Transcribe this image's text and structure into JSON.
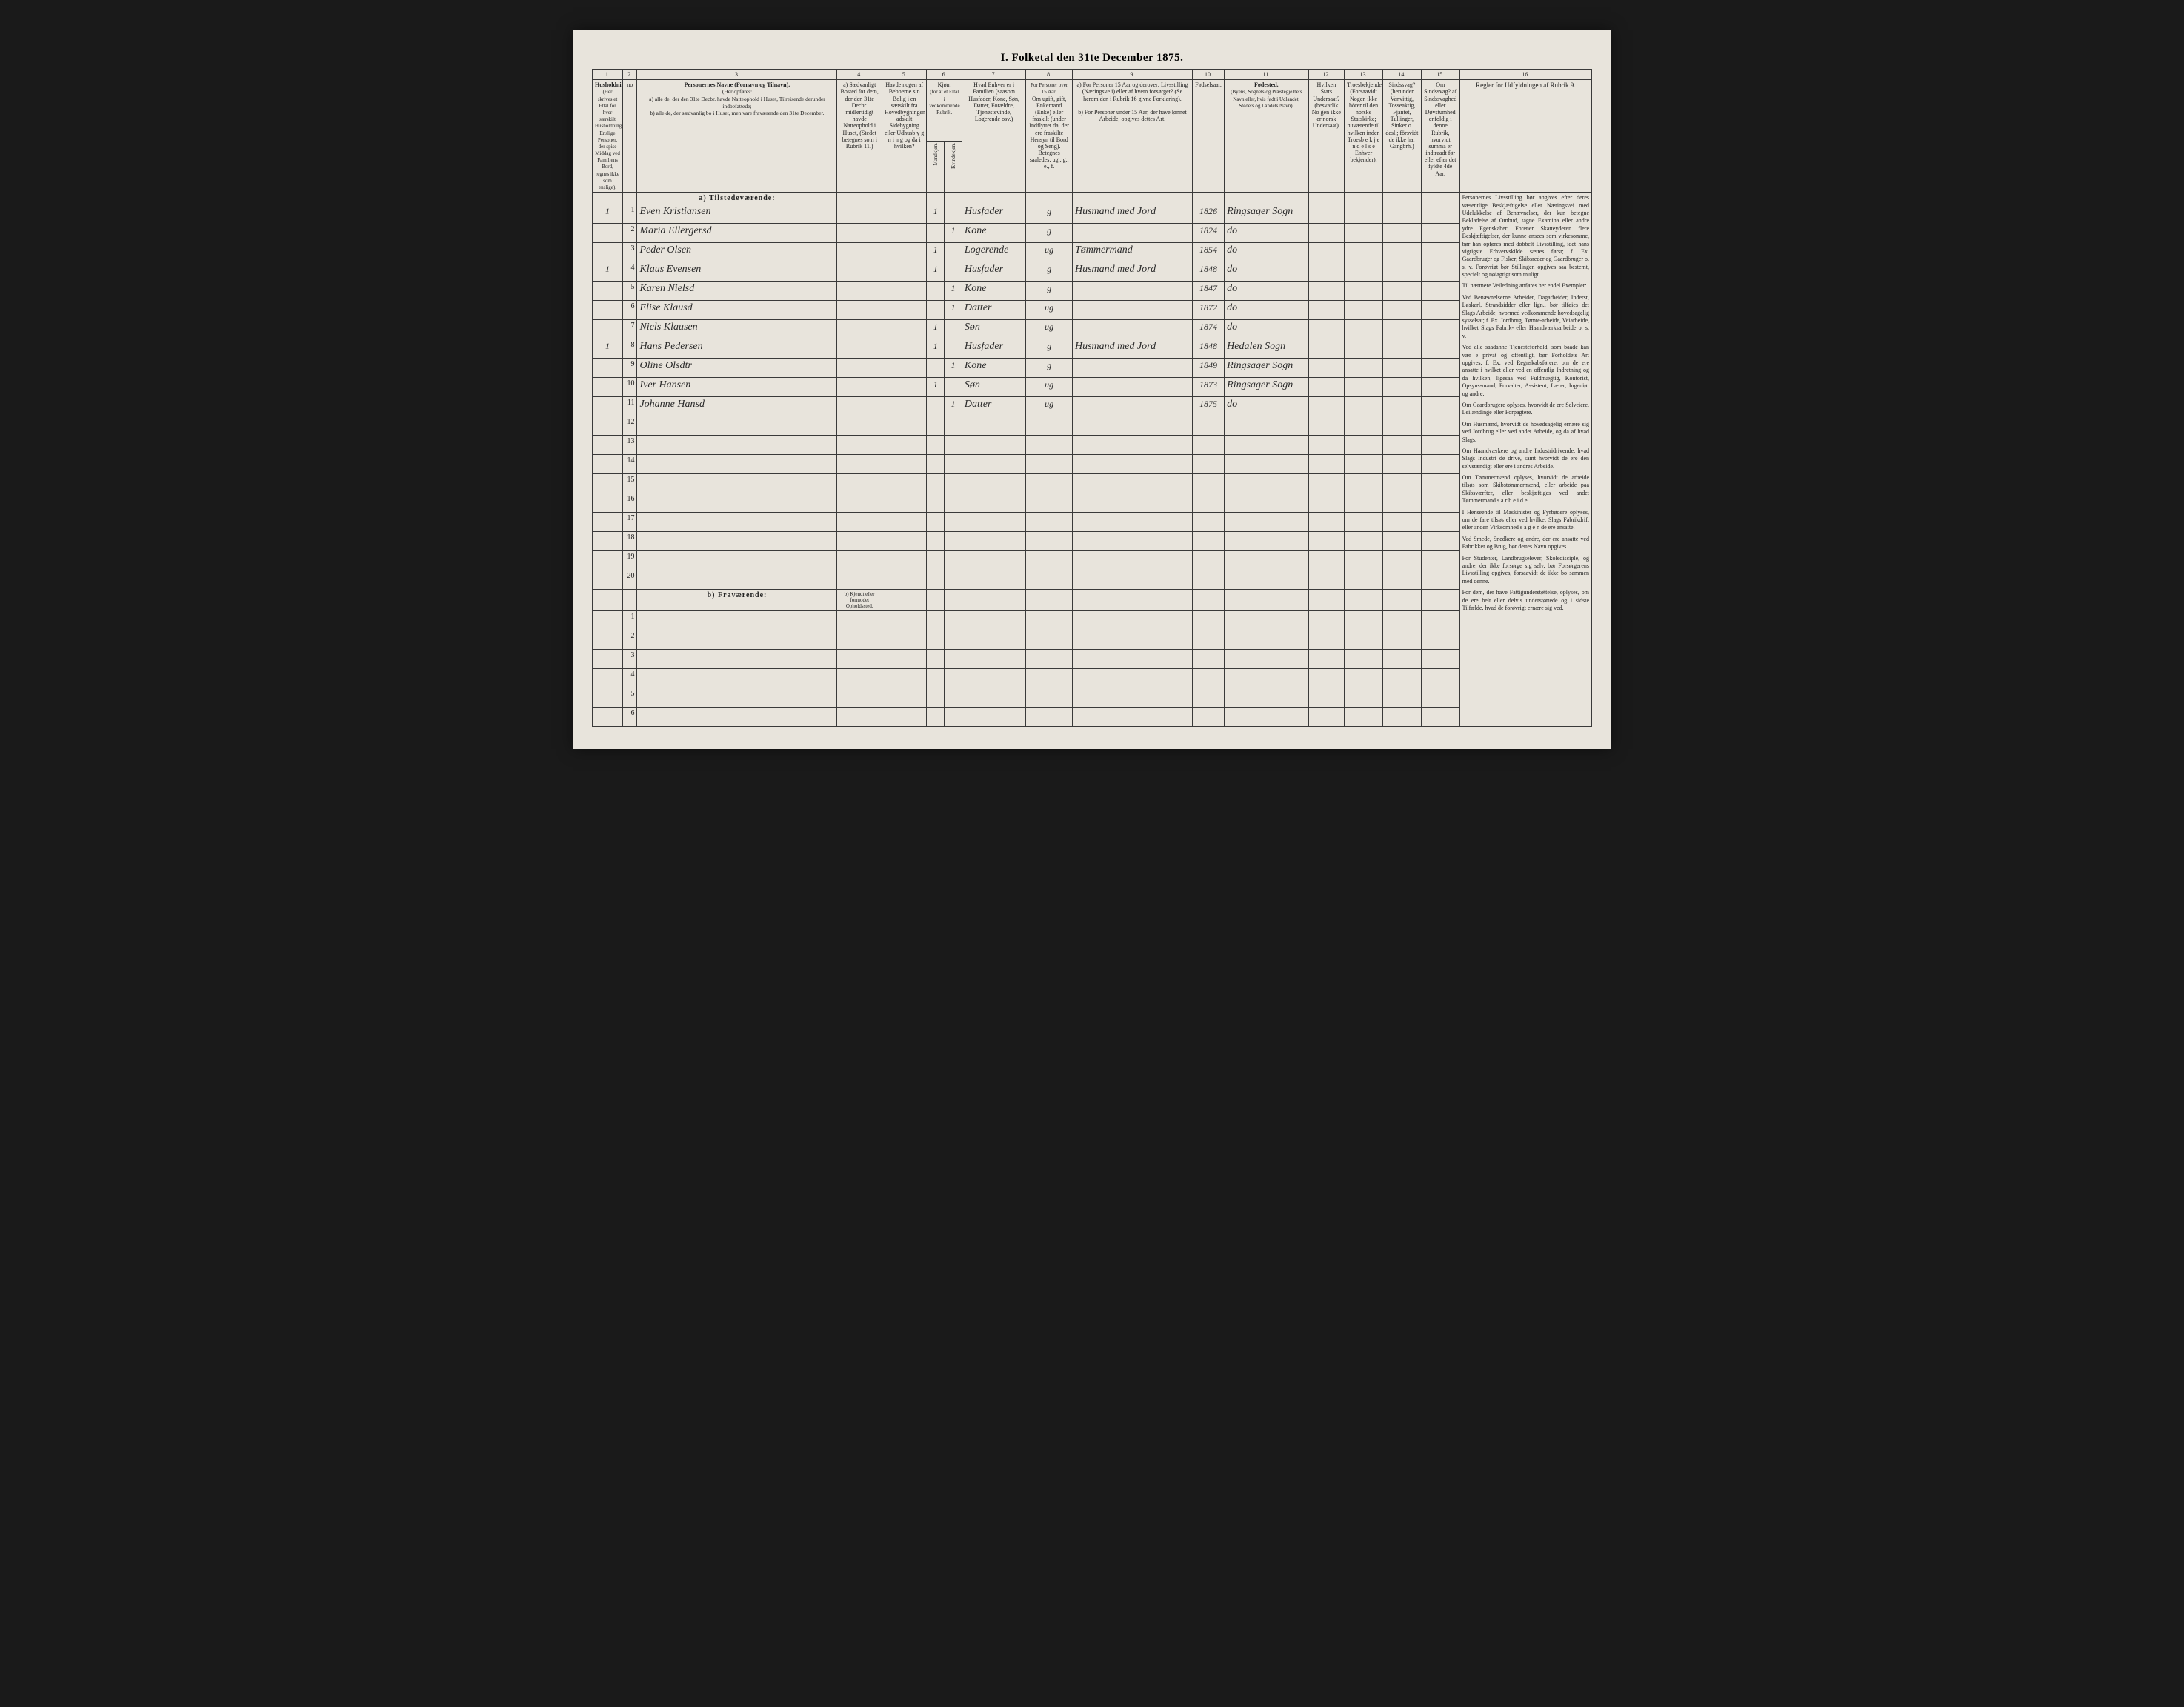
{
  "title": "I. Folketal den 31te December 1875.",
  "columns": {
    "nums": [
      "1.",
      "2.",
      "3.",
      "4.",
      "5.",
      "6.",
      "7.",
      "8.",
      "9.",
      "10.",
      "11.",
      "12.",
      "13.",
      "14.",
      "15.",
      "16."
    ],
    "h1": "Husholdninger.",
    "h1_sub": "(Her skrives et Ettal for hver særskilt Husholdning. Enslige Personer, der spise Middag ved Familiens Bord, regnes ikke som enslige).",
    "h2": "no",
    "h3_title": "Personernes Navne (Fornavn og Tilnavn).",
    "h3_sub": "(Her opføres:\na) alle de, der den 31te Decbr. havde Natteophold i Huset, Tilreisende derunder indbefattede;\nb) alle de, der sædvanlig bo i Huset, men vare fraværende den 31te December.",
    "h4": "a) Sædvanligt Bosted for dem, der den 31te Decbr. midlertidigt havde Natteophold i Huset, (Stedet betegnes som i Rubrik 11.)",
    "h5": "Havde nogen af Beboerne sin Bolig i en særskilt fra Hovedbygningen adskilt Sidebygning eller Udhusb y g n i n g og da i hvilken?",
    "h6_top": "Kjøn.",
    "h6_sub": "(for at et Ettal i vedkommende Rubrik.",
    "h6a": "Mandkjøn.",
    "h6b": "Kvindekjøn.",
    "h7": "Hvad Enhver er i Familien (saasom Husfader, Kone, Søn, Datter, Forældre, Tjenestevinde, Logerende osv.)",
    "h8_top": "For Personer over 15 Aar:",
    "h8": "Om ugift, gift, Enkemand (Enke) eller fraskilt (under Indflyttet da, der ere fraskilte Hensyn til Bord og Seng). Betegnes saaledes: ug., g., e., f.",
    "h9_top": "a) For Personer 15 Aar og derover: Livsstilling (Næringsve i) eller af hvem forsørget? (Se herom den i Rubrik 16 givne Forklaring).",
    "h9_bot": "b) For Personer under 15 Aar, der have lønnet Arbeide, opgives dettes Art.",
    "h10": "Fødselsaar.",
    "h11_title": "Fødested.",
    "h11_sub": "(Byens, Sognets og Præstegjeldets Navn eller, hvis født i Udlandet, Stedets og Landets Navn).",
    "h12": "Hvilken Stats Undersaat? (besvarlik No gen ikke er norsk Undersaat).",
    "h13": "Troesbekjendelse. (Forsaavidt Nogen ikke hörer til den norske Statskirke; nuværende til hvilken inden Troesb e k j e n d e l s e Enhver bekjender).",
    "h14": "Sindssvag? (herunder Vanvittig, Tosseaktig, Fjantet, Tullinger, Sinker o. desl.; försvidt de ikke har Gangbrh.)",
    "h15": "Om Sindssvag? af Sindssvaghed eller Døvstumhed enfoldig i denne Rubrik, hvorvidt summa er indtraadt før eller efter det fyldte 4de Aar.",
    "h16_title": "Regler for Udfyldningen af Rubrik 9."
  },
  "section_present": "a) Tilstedeværende:",
  "section_absent": "b) Fraværende:",
  "absent_h4": "b) Kjendt eller formodet Opholdssted.",
  "rows": [
    {
      "n": "1",
      "hh": "1",
      "name": "Even Kristiansen",
      "m": "1",
      "f": "",
      "rel": "Husfader",
      "civ": "g",
      "occ": "Husmand med Jord",
      "yr": "1826",
      "place": "Ringsager Sogn"
    },
    {
      "n": "2",
      "hh": "",
      "name": "Maria Ellergersd",
      "m": "",
      "f": "1",
      "rel": "Kone",
      "civ": "g",
      "occ": "",
      "yr": "1824",
      "place": "do"
    },
    {
      "n": "3",
      "hh": "",
      "name": "Peder Olsen",
      "m": "1",
      "f": "",
      "rel": "Logerende",
      "civ": "ug",
      "occ": "Tømmermand",
      "yr": "1854",
      "place": "do"
    },
    {
      "n": "4",
      "hh": "1",
      "name": "Klaus Evensen",
      "m": "1",
      "f": "",
      "rel": "Husfader",
      "civ": "g",
      "occ": "Husmand med Jord",
      "yr": "1848",
      "place": "do"
    },
    {
      "n": "5",
      "hh": "",
      "name": "Karen Nielsd",
      "m": "",
      "f": "1",
      "rel": "Kone",
      "civ": "g",
      "occ": "",
      "yr": "1847",
      "place": "do"
    },
    {
      "n": "6",
      "hh": "",
      "name": "Elise Klausd",
      "m": "",
      "f": "1",
      "rel": "Datter",
      "civ": "ug",
      "occ": "",
      "yr": "1872",
      "place": "do"
    },
    {
      "n": "7",
      "hh": "",
      "name": "Niels Klausen",
      "m": "1",
      "f": "",
      "rel": "Søn",
      "civ": "ug",
      "occ": "",
      "yr": "1874",
      "place": "do"
    },
    {
      "n": "8",
      "hh": "1",
      "name": "Hans Pedersen",
      "m": "1",
      "f": "",
      "rel": "Husfader",
      "civ": "g",
      "occ": "Husmand med Jord",
      "yr": "1848",
      "place": "Hedalen Sogn"
    },
    {
      "n": "9",
      "hh": "",
      "name": "Oline Olsdtr",
      "m": "",
      "f": "1",
      "rel": "Kone",
      "civ": "g",
      "occ": "",
      "yr": "1849",
      "place": "Ringsager Sogn"
    },
    {
      "n": "10",
      "hh": "",
      "name": "Iver Hansen",
      "m": "1",
      "f": "",
      "rel": "Søn",
      "civ": "ug",
      "occ": "",
      "yr": "1873",
      "place": "Ringsager Sogn"
    },
    {
      "n": "11",
      "hh": "",
      "name": "Johanne Hansd",
      "m": "",
      "f": "1",
      "rel": "Datter",
      "civ": "ug",
      "occ": "",
      "yr": "1875",
      "place": "do"
    },
    {
      "n": "12"
    },
    {
      "n": "13"
    },
    {
      "n": "14"
    },
    {
      "n": "15"
    },
    {
      "n": "16"
    },
    {
      "n": "17"
    },
    {
      "n": "18"
    },
    {
      "n": "19"
    },
    {
      "n": "20"
    }
  ],
  "absent_rows": [
    "1",
    "2",
    "3",
    "4",
    "5",
    "6"
  ],
  "instructions": [
    "Personernes Livsstilling bør angives efter deres væsentlige Beskjæftigelse eller Næringsvei med Udelukkelse af Benævnelser, der kun betegne Bekladelse af Ombud, tagne Examina eller andre ydre Egenskaber. Forener Skatteyderen flere Beskjæftigelser, der kunne ansees som virkesomme, bør han opføres med dobbelt Livsstilling, idet hans vigtigste Erhvervskilde sættes først; f. Ex. Gaardbruger og Fisker; Skibsreder og Gaardbruger o. s. v. Forøvrigt bør Stillingen opgives saa bestemt, specielt og nøiagtigt som muligt.",
    "Til nærmere Veiledning anføres her endel Exempler:",
    "Ved Benævnelserne Arbeider, Dagarbeider, Inderst, Løskarl, Strandsidder eller lign., bør tilføies det Slags Arbeide, hvormed vedkommende hovedsagelig sysselsat; f. Ex. Jordbrug, Tømte-arbeide, Veiarbeide, hvilket Slags Fabrik- eller Haandværksarbeide o. s. v.",
    "Ved alle saadanne Tjenesteforhold, som baade kan vær e privat og offentligt, bør Forholdets Art opgives, f. Ex. ved Regnskabsførere, om de ere ansatte i hvilket eller ved en offentlig Indretning og da hvilken; ligesaa ved Fuldmægtig, Kontorist, Opsyns-mand, Forvalter, Assistent, Lærer, Ingeniør og andre.",
    "Om Gaardbrugere oplyses, hvorvidt de ere Selveiere, Leilændinge eller Forpagtere.",
    "Om Husmænd, hvorvidt de hovedsagelig ernære sig ved Jordbrug eller ved andet Arbeide, og da af hvad Slags.",
    "Om Haandværkere og andre Industridrivende, hvad Slags Industri de drive, samt hvorvidt de ere den selvstændigt eller ere i andres Arbeide.",
    "Om Tømmermænd oplyses, hvorvidt de arbeide tilsøs som Skibstømmermænd, eller arbeide paa Skibsværfter, eller beskjæftiges ved andet Tømmermand s a r b e i d e.",
    "I Henseende til Maskinister og Fyrbødere oplyses, om de fare tilsøs eller ved hvilket Slags Fabrikdrift eller anden Virksomhed s a g e n de ere ansatte.",
    "Ved Smede, Snedkere og andre, der ere ansatte ved Fabrikker og Brug, bør dettes Navn opgives.",
    "For Studenter, Landbrugselever, Skoledisciple, og andre, der ikke forsørge sig selv, bør Forsørgerens Livsstilling opgives, forsaavidt de ikke bo sammen med denne.",
    "For dem, der have Fattigunderstøttelse, oplyses, om de ere helt eller delvis understøttede og i sidste Tilfælde, hvad de forøvrigt ernære sig ved."
  ]
}
